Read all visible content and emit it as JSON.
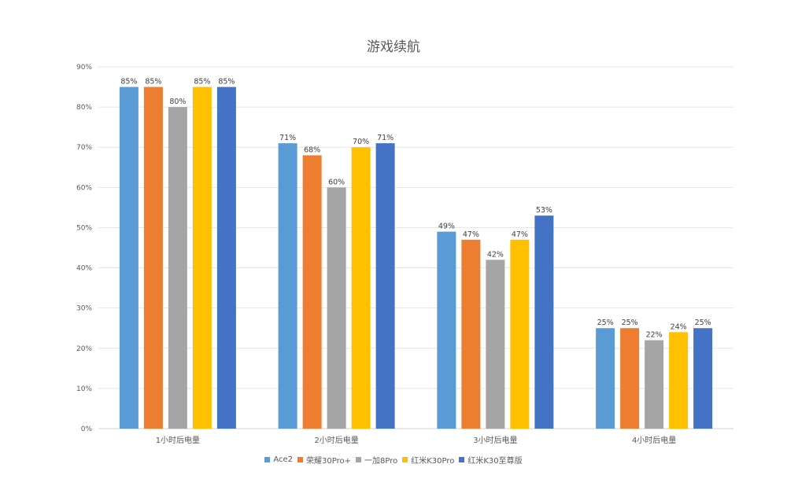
{
  "chart_data": {
    "type": "bar",
    "title": "游戏续航",
    "xlabel": "",
    "ylabel": "",
    "categories": [
      "1小时后电量",
      "2小时后电量",
      "3小时后电量",
      "4小时后电量"
    ],
    "ylim": [
      0,
      90
    ],
    "yticks": [
      "0%",
      "10%",
      "20%",
      "30%",
      "40%",
      "50%",
      "60%",
      "70%",
      "80%",
      "90%"
    ],
    "grid": true,
    "legend_position": "bottom",
    "value_suffix": "%",
    "series": [
      {
        "name": "Ace2",
        "color": "#5B9BD5",
        "values": [
          85,
          71,
          49,
          25
        ]
      },
      {
        "name": "荣耀30Pro+",
        "color": "#ED7D31",
        "values": [
          85,
          68,
          47,
          25
        ]
      },
      {
        "name": "一加8Pro",
        "color": "#A5A5A5",
        "values": [
          80,
          60,
          42,
          22
        ]
      },
      {
        "name": "红米K30Pro",
        "color": "#FFC000",
        "values": [
          85,
          70,
          47,
          24
        ]
      },
      {
        "name": "红米K30至尊版",
        "color": "#4472C4",
        "values": [
          85,
          71,
          53,
          25
        ]
      }
    ]
  }
}
